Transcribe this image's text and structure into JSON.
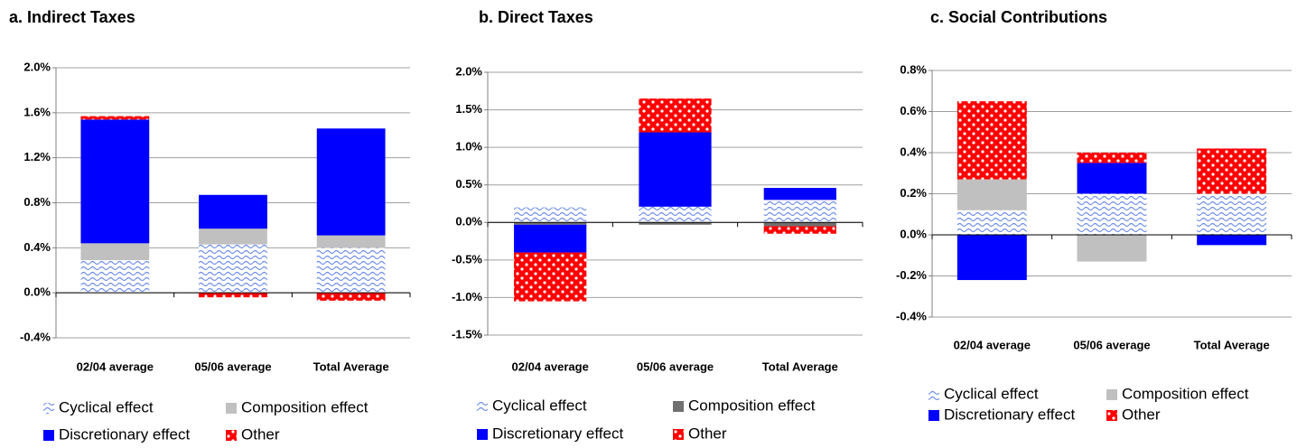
{
  "chart_data": [
    {
      "type": "bar",
      "stacked": true,
      "title": "a. Indirect Taxes",
      "categories": [
        "02/04 average",
        "05/06 average",
        "Total Average"
      ],
      "series": [
        {
          "name": "Cyclical effect",
          "color": "#6f8fe8",
          "pattern": "wave",
          "values": [
            0.29,
            0.43,
            0.4
          ]
        },
        {
          "name": "Composition effect",
          "color": "#c0c0c0",
          "pattern": "solid",
          "values": [
            0.15,
            0.14,
            0.11
          ]
        },
        {
          "name": "Discretionary effect",
          "color": "#0000ff",
          "pattern": "solid",
          "values": [
            1.1,
            0.3,
            0.95
          ]
        },
        {
          "name": "Other",
          "color": "#ff0000",
          "pattern": "dots",
          "values": [
            0.03,
            -0.04,
            -0.07
          ]
        }
      ],
      "ylim": [
        -0.4,
        2.0
      ],
      "yticks": [
        {
          "value": -0.4,
          "label": "-0.4%"
        },
        {
          "value": 0.0,
          "label": "0.0%"
        },
        {
          "value": 0.4,
          "label": "0.4%"
        },
        {
          "value": 0.8,
          "label": "0.8%"
        },
        {
          "value": 1.2,
          "label": "1.2%"
        },
        {
          "value": 1.6,
          "label": "1.6%"
        },
        {
          "value": 2.0,
          "label": "2.0%"
        }
      ],
      "grid": true
    },
    {
      "type": "bar",
      "stacked": true,
      "title": "b. Direct Taxes",
      "categories": [
        "02/04 average",
        "05/06 average",
        "Total Average"
      ],
      "series": [
        {
          "name": "Cyclical effect",
          "color": "#6f8fe8",
          "pattern": "wave",
          "values": [
            0.2,
            0.21,
            0.3
          ]
        },
        {
          "name": "Composition effect",
          "color": "#707070",
          "pattern": "solid",
          "values": [
            -0.03,
            -0.03,
            -0.05
          ]
        },
        {
          "name": "Discretionary effect",
          "color": "#0000ff",
          "pattern": "solid",
          "values": [
            -0.37,
            0.99,
            0.16
          ]
        },
        {
          "name": "Other",
          "color": "#ff0000",
          "pattern": "dots",
          "values": [
            -0.65,
            0.45,
            -0.1
          ]
        }
      ],
      "ylim": [
        -1.5,
        2.0
      ],
      "yticks": [
        {
          "value": -1.5,
          "label": "-1.5%"
        },
        {
          "value": -1.0,
          "label": "-1.0%"
        },
        {
          "value": -0.5,
          "label": "-0.5%"
        },
        {
          "value": 0.0,
          "label": "0.0%"
        },
        {
          "value": 0.5,
          "label": "0.5%"
        },
        {
          "value": 1.0,
          "label": "1.0%"
        },
        {
          "value": 1.5,
          "label": "1.5%"
        },
        {
          "value": 2.0,
          "label": "2.0%"
        }
      ],
      "grid": true
    },
    {
      "type": "bar",
      "stacked": true,
      "title": "c. Social Contributions",
      "categories": [
        "02/04 average",
        "05/06 average",
        "Total Average"
      ],
      "series": [
        {
          "name": "Cyclical effect",
          "color": "#6f8fe8",
          "pattern": "wave",
          "values": [
            0.12,
            0.2,
            0.2
          ]
        },
        {
          "name": "Composition effect",
          "color": "#c0c0c0",
          "pattern": "solid",
          "values": [
            0.15,
            -0.13,
            0.0
          ]
        },
        {
          "name": "Discretionary effect",
          "color": "#0000ff",
          "pattern": "solid",
          "values": [
            -0.22,
            0.15,
            -0.05
          ]
        },
        {
          "name": "Other",
          "color": "#ff0000",
          "pattern": "dots",
          "values": [
            0.38,
            0.05,
            0.22
          ]
        }
      ],
      "ylim": [
        -0.4,
        0.8
      ],
      "yticks": [
        {
          "value": -0.4,
          "label": "-0.4%"
        },
        {
          "value": -0.2,
          "label": "-0.2%"
        },
        {
          "value": 0.0,
          "label": "0.0%"
        },
        {
          "value": 0.2,
          "label": "0.2%"
        },
        {
          "value": 0.4,
          "label": "0.4%"
        },
        {
          "value": 0.6,
          "label": "0.6%"
        },
        {
          "value": 0.8,
          "label": "0.8%"
        }
      ],
      "grid": true
    }
  ]
}
